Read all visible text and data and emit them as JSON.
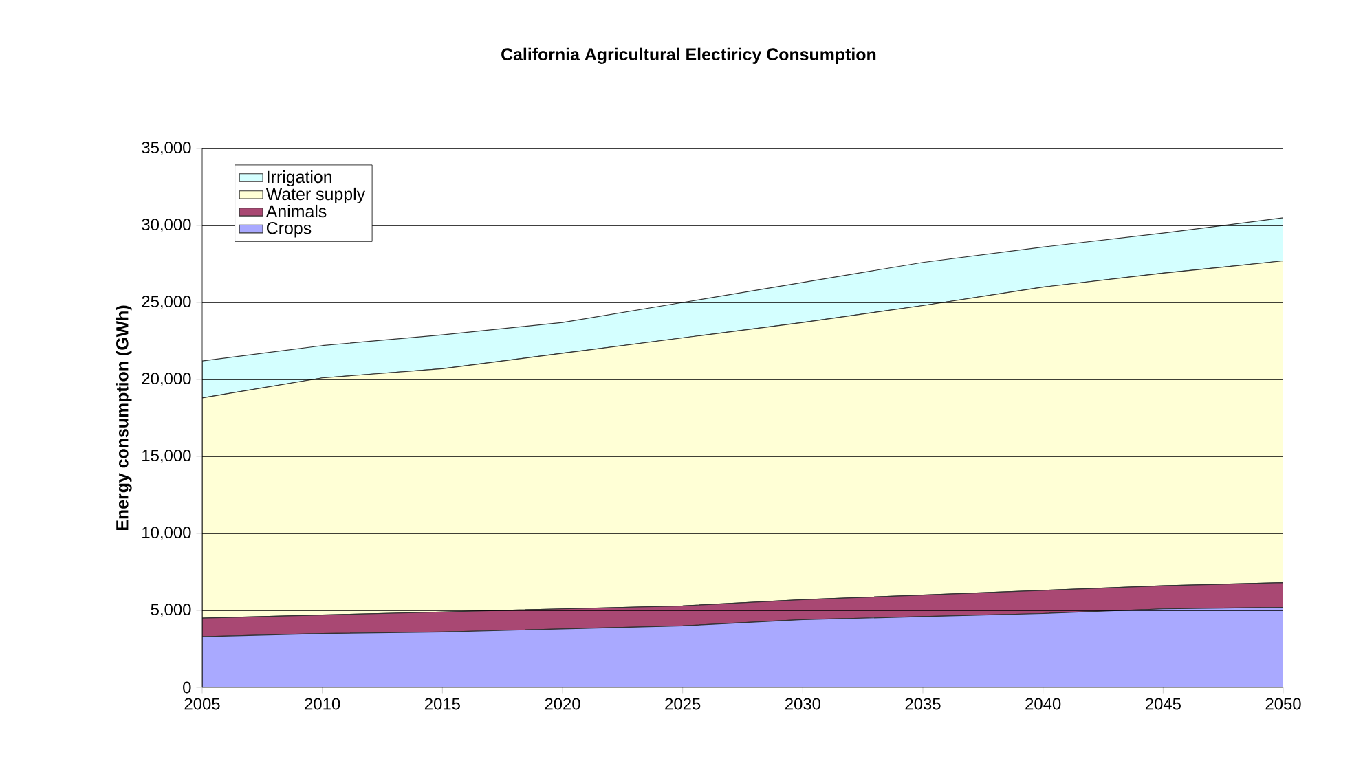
{
  "chart_data": {
    "type": "area",
    "title": "California Agricultural Electiricy Consumption",
    "ylabel": "Energy consumption (GWh)",
    "stacked": true,
    "x": [
      2005,
      2010,
      2015,
      2020,
      2025,
      2030,
      2035,
      2040,
      2045,
      2050
    ],
    "series": [
      {
        "name": "Crops",
        "color": "#a9a9ff",
        "values": [
          3300,
          3500,
          3600,
          3800,
          4000,
          4400,
          4600,
          4800,
          5100,
          5200
        ]
      },
      {
        "name": "Animals",
        "color": "#a94873",
        "values": [
          1200,
          1200,
          1300,
          1300,
          1300,
          1300,
          1400,
          1500,
          1500,
          1600
        ]
      },
      {
        "name": "Water supply",
        "color": "#ffffd6",
        "values": [
          14300,
          15400,
          15800,
          16600,
          17400,
          18000,
          18800,
          19700,
          20300,
          20900
        ]
      },
      {
        "name": "Irrigation",
        "color": "#d4ffff",
        "values": [
          2400,
          2100,
          2200,
          2000,
          2300,
          2600,
          2800,
          2600,
          2600,
          2800
        ]
      }
    ],
    "xlim": [
      2005,
      2050
    ],
    "xticks": [
      2005,
      2010,
      2015,
      2020,
      2025,
      2030,
      2035,
      2040,
      2045,
      2050
    ],
    "ylim": [
      0,
      35000
    ],
    "yticks": [
      {
        "value": 0,
        "label": "0"
      },
      {
        "value": 5000,
        "label": "5,000"
      },
      {
        "value": 10000,
        "label": "10,000"
      },
      {
        "value": 15000,
        "label": "15,000"
      },
      {
        "value": 20000,
        "label": "20,000"
      },
      {
        "value": 25000,
        "label": "25,000"
      },
      {
        "value": 30000,
        "label": "30,000"
      },
      {
        "value": 35000,
        "label": "35,000"
      }
    ],
    "grid": "y",
    "legend": "top left"
  }
}
